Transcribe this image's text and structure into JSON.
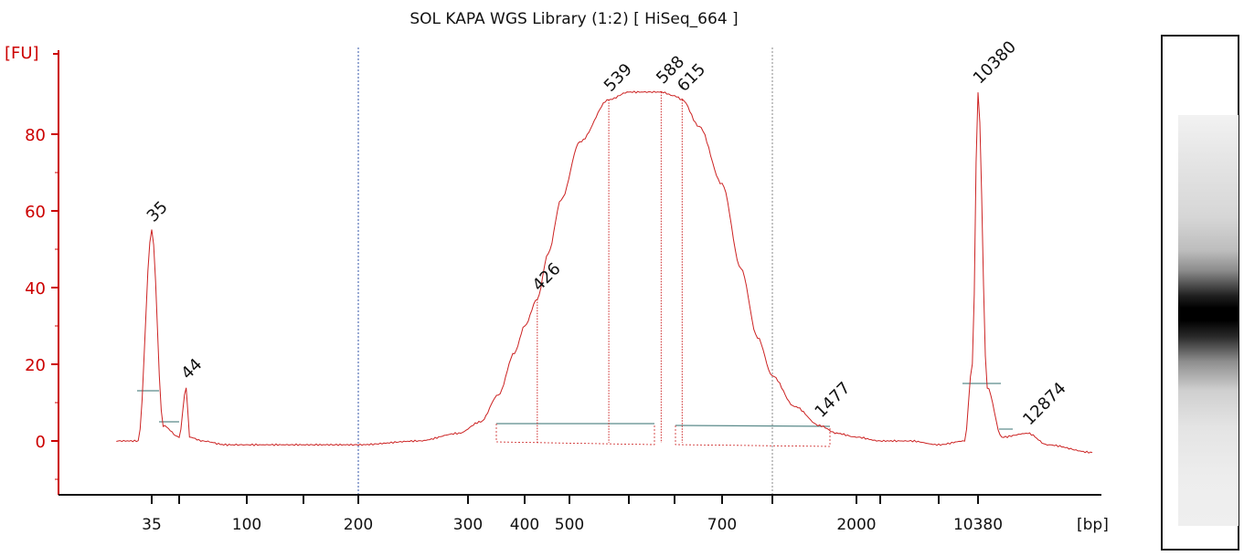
{
  "title": "SOL KAPA WGS Library (1:2)  [ HiSeq_664 ]",
  "colors": {
    "trace": "#cc2222",
    "axis": "#cc0000",
    "upper_marker": "#a050f0",
    "lower_marker": "#1a8a1a",
    "baseline": "#5a8a8a",
    "gridline": "#3355aa",
    "gridline_right": "#888888"
  },
  "chart_data": {
    "type": "line",
    "title": "SOL KAPA WGS Library (1:2)  [ HiSeq_664 ]",
    "ylabel": "[FU]",
    "xlabel": "[bp]",
    "ylim": [
      -14,
      93
    ],
    "yticks": [
      0,
      20,
      40,
      60,
      80
    ],
    "x_scale": "categorical (non-linear bp sizing)",
    "xticks": [
      "35",
      "100",
      "200",
      "300",
      "400",
      "500",
      "700",
      "2000",
      "10380"
    ],
    "series": [
      {
        "x": [
          30,
          33,
          35,
          37,
          40,
          44,
          46,
          55,
          75,
          100,
          150,
          200,
          250,
          290,
          320,
          350,
          380,
          400,
          426,
          450,
          480,
          510,
          539,
          560,
          588,
          600,
          615,
          650,
          700,
          800,
          900,
          1000,
          1200,
          1477,
          1700,
          2000,
          3000,
          5000,
          8000,
          9500,
          10000,
          10380,
          10800,
          11500,
          12874,
          14000,
          17000
        ],
        "y": [
          0,
          0,
          55,
          4,
          1,
          14,
          1,
          0,
          -1,
          -1,
          -1,
          -1,
          0,
          2,
          5,
          12,
          23,
          30,
          37,
          49,
          63,
          78,
          89,
          91,
          91,
          90,
          89,
          82,
          67,
          45,
          27,
          17,
          9,
          4,
          2,
          1,
          0,
          0,
          -1,
          0,
          20,
          91,
          14,
          1,
          2,
          -1,
          -3
        ]
      }
    ],
    "peaks": [
      {
        "label": "35",
        "x": 35,
        "y": 55,
        "role": "lower marker"
      },
      {
        "label": "44",
        "x": 44,
        "y": 14
      },
      {
        "label": "426",
        "x": 426,
        "y": 37
      },
      {
        "label": "539",
        "x": 539,
        "y": 89
      },
      {
        "label": "588",
        "x": 588,
        "y": 91
      },
      {
        "label": "615",
        "x": 615,
        "y": 89
      },
      {
        "label": "1477",
        "x": 1477,
        "y": 4
      },
      {
        "label": "10380",
        "x": 10380,
        "y": 91,
        "role": "upper marker"
      },
      {
        "label": "12874",
        "x": 12874,
        "y": 2
      }
    ],
    "grid": "vertical dotted lines at 200 and ~1000 bp",
    "legend": "none"
  },
  "gel": {
    "upper_marker_color": "#a050f0",
    "lower_marker_color": "#1a8a1a"
  }
}
